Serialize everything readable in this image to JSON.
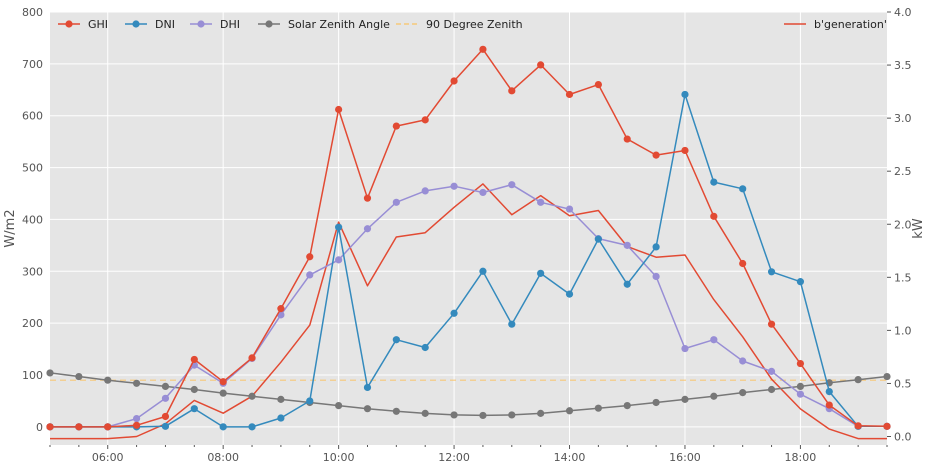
{
  "chart_data": {
    "type": "line",
    "title": "",
    "xlabel": "",
    "ylabel": "W/m2",
    "y2label": "kW",
    "xlim": [
      "05:00",
      "19:30"
    ],
    "ylim": [
      -35,
      800
    ],
    "y2lim": [
      -0.08,
      4.0
    ],
    "grid": true,
    "legend_left_position": "top-left",
    "legend_right_position": "top-right",
    "x_ticks": [
      "06:00",
      "08:00",
      "10:00",
      "12:00",
      "14:00",
      "16:00",
      "18:00"
    ],
    "y_ticks": [
      "0",
      "100",
      "200",
      "300",
      "400",
      "500",
      "600",
      "700",
      "800"
    ],
    "y2_ticks": [
      "0.0",
      "0.5",
      "1.0",
      "1.5",
      "2.0",
      "2.5",
      "3.0",
      "3.5",
      "4.0"
    ],
    "x": [
      "05:00",
      "05:30",
      "06:00",
      "06:30",
      "07:00",
      "07:30",
      "08:00",
      "08:30",
      "09:00",
      "09:30",
      "10:00",
      "10:30",
      "11:00",
      "11:30",
      "12:00",
      "12:30",
      "13:00",
      "13:30",
      "14:00",
      "14:30",
      "15:00",
      "15:30",
      "16:00",
      "16:30",
      "17:00",
      "17:30",
      "18:00",
      "18:30",
      "19:00",
      "19:30"
    ],
    "series": [
      {
        "name": "GHI",
        "axis": "left",
        "color": "#E24A33",
        "marker": true,
        "values": [
          0,
          0,
          0,
          3,
          20,
          130,
          87,
          133,
          228,
          328,
          612,
          441,
          580,
          592,
          667,
          728,
          648,
          698,
          641,
          660,
          555,
          524,
          533,
          406,
          315,
          198,
          122,
          42,
          2,
          1
        ]
      },
      {
        "name": "DNI",
        "axis": "left",
        "color": "#348ABD",
        "marker": true,
        "values": [
          0,
          0,
          0,
          0,
          1,
          35,
          0,
          0,
          17,
          50,
          385,
          76,
          168,
          153,
          219,
          300,
          198,
          296,
          256,
          362,
          275,
          347,
          641,
          472,
          459,
          299,
          280,
          68,
          1,
          1
        ]
      },
      {
        "name": "DHI",
        "axis": "left",
        "color": "#988ED5",
        "marker": true,
        "values": [
          0,
          0,
          0,
          16,
          55,
          119,
          84,
          132,
          216,
          293,
          322,
          382,
          433,
          455,
          464,
          452,
          467,
          433,
          420,
          363,
          350,
          290,
          151,
          168,
          127,
          107,
          63,
          35,
          1,
          1
        ]
      },
      {
        "name": "Solar Zenith Angle",
        "axis": "left",
        "color": "#777777",
        "marker": true,
        "values": [
          104,
          97,
          90,
          84,
          78,
          72,
          65,
          59,
          53,
          47,
          41,
          35,
          30,
          26,
          23,
          22,
          23,
          26,
          31,
          36,
          41,
          47,
          53,
          59,
          66,
          72,
          78,
          85,
          91,
          97
        ]
      },
      {
        "name": "90 Degree Zenith",
        "axis": "left",
        "color": "#FBC15E",
        "marker": false,
        "dashed": true,
        "values": [
          90,
          90,
          90,
          90,
          90,
          90,
          90,
          90,
          90,
          90,
          90,
          90,
          90,
          90,
          90,
          90,
          90,
          90,
          90,
          90,
          90,
          90,
          90,
          90,
          90,
          90,
          90,
          90,
          90,
          90
        ]
      },
      {
        "name": "b'generation'",
        "axis": "right",
        "color": "#E24A33",
        "marker": false,
        "values": [
          -0.02,
          -0.02,
          -0.02,
          0.0,
          0.12,
          0.34,
          0.22,
          0.38,
          0.7,
          1.05,
          2.02,
          1.42,
          1.88,
          1.92,
          2.16,
          2.38,
          2.09,
          2.27,
          2.08,
          2.13,
          1.79,
          1.69,
          1.71,
          1.29,
          0.94,
          0.54,
          0.26,
          0.07,
          -0.02,
          -0.02
        ]
      }
    ]
  }
}
